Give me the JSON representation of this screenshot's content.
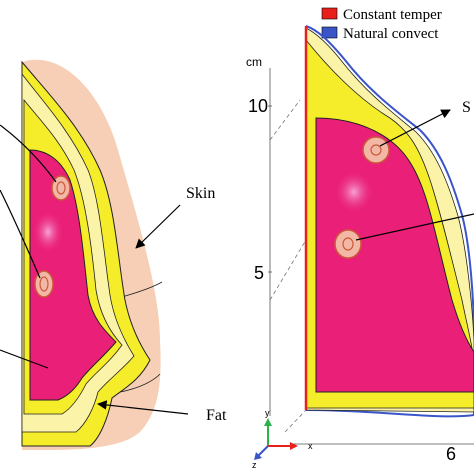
{
  "left_panel": {
    "labels": {
      "skin": "Skin",
      "fat": "Fat"
    }
  },
  "right_panel": {
    "legend": [
      {
        "label": "Constant temper",
        "color": "#e8201c"
      },
      {
        "label": "Natural convect",
        "color": "#3a55c8"
      }
    ],
    "axis": {
      "unit": "cm",
      "y_ticks": [
        "10",
        "5"
      ],
      "x_tick": "6"
    },
    "labels": {
      "s_partial": "S"
    },
    "triad": {
      "x": "x",
      "y": "y",
      "z": "z"
    }
  },
  "colors": {
    "skin": "#f6cfb6",
    "fat_yellow": "#f5ed2a",
    "pale_yellow": "#fbf3a8",
    "gland_pink": "#ea1f77",
    "tumor_fill": "#f3b7a6",
    "tumor_ring": "#c95a3a",
    "boundary_red": "#e8201c",
    "boundary_blue": "#3a55c8"
  }
}
